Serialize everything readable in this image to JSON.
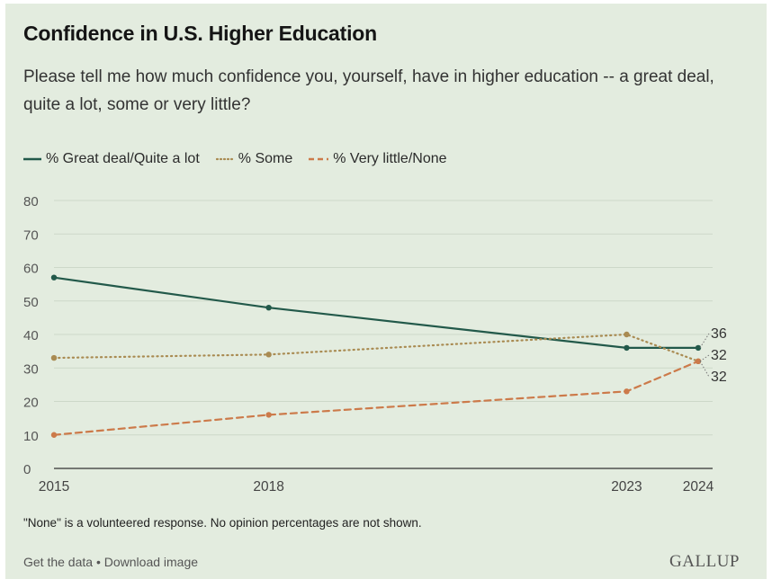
{
  "title": "Confidence in U.S. Higher Education",
  "subtitle": "Please tell me how much confidence you, yourself, have in higher education -- a great deal, quite a lot, some or very little?",
  "note": "\"None\" is a volunteered response. No opinion percentages are not shown.",
  "footer": {
    "get_data": "Get the data",
    "separator": "•",
    "download": "Download image"
  },
  "brand": "GALLUP",
  "colors": {
    "background": "#e3ecdf",
    "great_deal": "#22594a",
    "some": "#a98b52",
    "very_little": "#cc7a4a",
    "grid": "#cdd8c9"
  },
  "chart_data": {
    "type": "line",
    "x": [
      2015,
      2018,
      2023,
      2024
    ],
    "xlabel": "",
    "ylabel": "",
    "ylim": [
      0,
      80
    ],
    "yticks": [
      0,
      10,
      20,
      30,
      40,
      50,
      60,
      70,
      80
    ],
    "grid": true,
    "legend_position": "top-left",
    "series": [
      {
        "name": "% Great deal/Quite a lot",
        "values": [
          57,
          48,
          36,
          36
        ],
        "style": "solid",
        "color": "#22594a"
      },
      {
        "name": "% Some",
        "values": [
          33,
          34,
          40,
          32
        ],
        "style": "dotted",
        "color": "#a98b52"
      },
      {
        "name": "% Very little/None",
        "values": [
          10,
          16,
          23,
          32
        ],
        "style": "dashed",
        "color": "#cc7a4a"
      }
    ],
    "end_labels": [
      "36",
      "32",
      "32"
    ]
  }
}
